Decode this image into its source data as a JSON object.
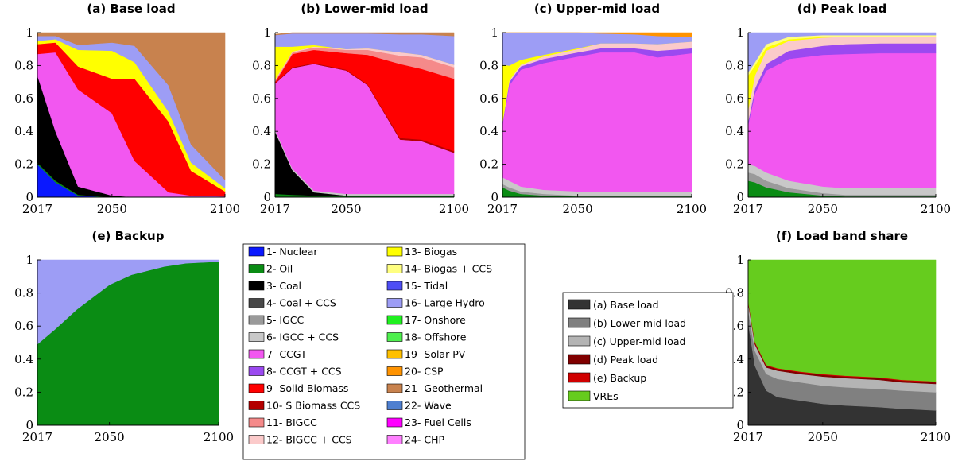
{
  "x_ticks": [
    "2017",
    "2050",
    "2100"
  ],
  "y_ticks": [
    "0",
    "0.2",
    "0.4",
    "0.6",
    "0.8",
    "1"
  ],
  "technologies": [
    {
      "id": 1,
      "label": "1- Nuclear",
      "color": "#0a18ff"
    },
    {
      "id": 2,
      "label": "2- Oil",
      "color": "#0a8c14"
    },
    {
      "id": 3,
      "label": "3- Coal",
      "color": "#000000"
    },
    {
      "id": 4,
      "label": "4- Coal + CCS",
      "color": "#484848"
    },
    {
      "id": 5,
      "label": "5- IGCC",
      "color": "#9a9a9a"
    },
    {
      "id": 6,
      "label": "6- IGCC + CCS",
      "color": "#c8c8c8"
    },
    {
      "id": 7,
      "label": "7- CCGT",
      "color": "#f257f0"
    },
    {
      "id": 8,
      "label": "8- CCGT + CCS",
      "color": "#9b49f0"
    },
    {
      "id": 9,
      "label": "9- Solid Biomass",
      "color": "#ff0000"
    },
    {
      "id": 10,
      "label": "10- S Biomass CCS",
      "color": "#b40000"
    },
    {
      "id": 11,
      "label": "11- BIGCC",
      "color": "#f58a8a"
    },
    {
      "id": 12,
      "label": "12- BIGCC + CCS",
      "color": "#fbcaca"
    },
    {
      "id": 13,
      "label": "13- Biogas",
      "color": "#ffff00"
    },
    {
      "id": 14,
      "label": "14- Biogas + CCS",
      "color": "#ffff80"
    },
    {
      "id": 15,
      "label": "15- Tidal",
      "color": "#4e4ef5"
    },
    {
      "id": 16,
      "label": "16- Large Hydro",
      "color": "#9d9df5"
    },
    {
      "id": 17,
      "label": "17- Onshore",
      "color": "#20f020"
    },
    {
      "id": 18,
      "label": "18- Offshore",
      "color": "#4ef04e"
    },
    {
      "id": 19,
      "label": "19- Solar PV",
      "color": "#ffc000"
    },
    {
      "id": 20,
      "label": "20- CSP",
      "color": "#ff9300"
    },
    {
      "id": 21,
      "label": "21- Geothermal",
      "color": "#c8824e"
    },
    {
      "id": 22,
      "label": "22- Wave",
      "color": "#4e7fd0"
    },
    {
      "id": 23,
      "label": "23- Fuel Cells",
      "color": "#ff00ff"
    },
    {
      "id": 24,
      "label": "24- CHP",
      "color": "#ff80ff"
    }
  ],
  "load_band_legend": [
    {
      "label": "(a) Base load",
      "color": "#333333"
    },
    {
      "label": "(b) Lower-mid load",
      "color": "#808080"
    },
    {
      "label": "(c) Upper-mid load",
      "color": "#b4b4b4"
    },
    {
      "label": "(d) Peak load",
      "color": "#800000"
    },
    {
      "label": "(e) Backup",
      "color": "#d00000"
    },
    {
      "label": "VREs",
      "color": "#66cc1e"
    }
  ],
  "chart_data": [
    {
      "type": "area",
      "title": "(a) Base load",
      "x": [
        2017,
        2025,
        2035,
        2050,
        2060,
        2075,
        2085,
        2100
      ],
      "ylim": [
        0,
        1
      ],
      "series": [
        {
          "tech": 1,
          "values": [
            0.2,
            0.09,
            0.01,
            0,
            0,
            0,
            0,
            0
          ]
        },
        {
          "tech": 2,
          "values": [
            0.01,
            0.01,
            0.005,
            0,
            0,
            0,
            0,
            0
          ]
        },
        {
          "tech": 3,
          "values": [
            0.53,
            0.3,
            0.05,
            0.01,
            0,
            0,
            0,
            0
          ]
        },
        {
          "tech": 7,
          "values": [
            0.13,
            0.48,
            0.59,
            0.5,
            0.22,
            0.03,
            0.01,
            0.005
          ]
        },
        {
          "tech": 9,
          "values": [
            0.06,
            0.06,
            0.14,
            0.21,
            0.5,
            0.43,
            0.15,
            0.03
          ]
        },
        {
          "tech": 13,
          "values": [
            0.02,
            0.02,
            0.1,
            0.17,
            0.1,
            0.06,
            0.05,
            0.02
          ]
        },
        {
          "tech": 16,
          "values": [
            0.03,
            0.02,
            0.03,
            0.05,
            0.1,
            0.16,
            0.11,
            0.05
          ]
        },
        {
          "tech": 21,
          "values": [
            0.02,
            0.02,
            0.075,
            0.06,
            0.08,
            0.32,
            0.68,
            0.895
          ]
        }
      ]
    },
    {
      "type": "area",
      "title": "(b) Lower-mid load",
      "x": [
        2017,
        2025,
        2035,
        2050,
        2060,
        2075,
        2085,
        2100
      ],
      "ylim": [
        0,
        1
      ],
      "series": [
        {
          "tech": 2,
          "values": [
            0.02,
            0.015,
            0.01,
            0.01,
            0.01,
            0.01,
            0.01,
            0.01
          ]
        },
        {
          "tech": 3,
          "values": [
            0.38,
            0.15,
            0.02,
            0,
            0,
            0,
            0,
            0
          ]
        },
        {
          "tech": 6,
          "values": [
            0.01,
            0.01,
            0.01,
            0.01,
            0.01,
            0.01,
            0.01,
            0.01
          ]
        },
        {
          "tech": 7,
          "values": [
            0.28,
            0.61,
            0.77,
            0.75,
            0.66,
            0.33,
            0.32,
            0.25
          ]
        },
        {
          "tech": 10,
          "values": [
            0.005,
            0.005,
            0.005,
            0.005,
            0.005,
            0.01,
            0.01,
            0.01
          ]
        },
        {
          "tech": 9,
          "values": [
            0.005,
            0.08,
            0.08,
            0.1,
            0.18,
            0.45,
            0.43,
            0.44
          ]
        },
        {
          "tech": 11,
          "values": [
            0.01,
            0.01,
            0.015,
            0.02,
            0.03,
            0.05,
            0.07,
            0.07
          ]
        },
        {
          "tech": 12,
          "values": [
            0.005,
            0.005,
            0.005,
            0.005,
            0.01,
            0.02,
            0.015,
            0.015
          ]
        },
        {
          "tech": 13,
          "values": [
            0.2,
            0.03,
            0.01,
            0,
            0,
            0,
            0,
            0
          ]
        },
        {
          "tech": 16,
          "values": [
            0.07,
            0.08,
            0.07,
            0.095,
            0.09,
            0.11,
            0.125,
            0.175
          ]
        },
        {
          "tech": 21,
          "values": [
            0.005,
            0.005,
            0.005,
            0.005,
            0.005,
            0.01,
            0.01,
            0.02
          ]
        }
      ]
    },
    {
      "type": "area",
      "title": "(c) Upper-mid load",
      "x": [
        2017,
        2020,
        2025,
        2035,
        2050,
        2060,
        2075,
        2085,
        2100
      ],
      "ylim": [
        0,
        1
      ],
      "series": [
        {
          "tech": 2,
          "values": [
            0.06,
            0.04,
            0.02,
            0.01,
            0.005,
            0.005,
            0.005,
            0.005,
            0.005
          ]
        },
        {
          "tech": 5,
          "values": [
            0.02,
            0.02,
            0.015,
            0.01,
            0.005,
            0.005,
            0.005,
            0.005,
            0.005
          ]
        },
        {
          "tech": 6,
          "values": [
            0.04,
            0.04,
            0.03,
            0.025,
            0.025,
            0.025,
            0.025,
            0.025,
            0.025
          ]
        },
        {
          "tech": 7,
          "values": [
            0.32,
            0.58,
            0.71,
            0.77,
            0.82,
            0.845,
            0.845,
            0.815,
            0.84
          ]
        },
        {
          "tech": 8,
          "values": [
            0.01,
            0.02,
            0.02,
            0.025,
            0.025,
            0.025,
            0.025,
            0.04,
            0.03
          ]
        },
        {
          "tech": 12,
          "values": [
            0.005,
            0.01,
            0.01,
            0.015,
            0.02,
            0.03,
            0.03,
            0.04,
            0.04
          ]
        },
        {
          "tech": 13,
          "values": [
            0.35,
            0.09,
            0.03,
            0.01,
            0.005,
            0,
            0,
            0,
            0
          ]
        },
        {
          "tech": 16,
          "values": [
            0.195,
            0.2,
            0.165,
            0.135,
            0.095,
            0.06,
            0.055,
            0.05,
            0.03
          ]
        },
        {
          "tech": 20,
          "values": [
            0,
            0,
            0,
            0,
            0,
            0.005,
            0.01,
            0.02,
            0.025
          ]
        }
      ]
    },
    {
      "type": "area",
      "title": "(d) Peak load",
      "x": [
        2017,
        2020,
        2025,
        2035,
        2050,
        2060,
        2075,
        2085,
        2100
      ],
      "ylim": [
        0,
        1
      ],
      "series": [
        {
          "tech": 2,
          "values": [
            0.1,
            0.09,
            0.06,
            0.03,
            0.01,
            0.005,
            0.005,
            0.005,
            0.005
          ]
        },
        {
          "tech": 5,
          "values": [
            0.05,
            0.05,
            0.04,
            0.025,
            0.015,
            0.01,
            0.01,
            0.01,
            0.01
          ]
        },
        {
          "tech": 6,
          "values": [
            0.05,
            0.05,
            0.05,
            0.045,
            0.04,
            0.04,
            0.04,
            0.04,
            0.04
          ]
        },
        {
          "tech": 7,
          "values": [
            0.24,
            0.44,
            0.62,
            0.74,
            0.8,
            0.815,
            0.82,
            0.82,
            0.82
          ]
        },
        {
          "tech": 8,
          "values": [
            0.02,
            0.03,
            0.04,
            0.05,
            0.055,
            0.06,
            0.06,
            0.06,
            0.06
          ]
        },
        {
          "tech": 12,
          "values": [
            0.07,
            0.08,
            0.08,
            0.06,
            0.05,
            0.045,
            0.04,
            0.04,
            0.04
          ]
        },
        {
          "tech": 13,
          "values": [
            0.21,
            0.06,
            0.02,
            0.01,
            0.005,
            0,
            0,
            0,
            0
          ]
        },
        {
          "tech": 14,
          "values": [
            0.02,
            0.02,
            0.02,
            0.015,
            0.01,
            0.01,
            0.01,
            0.01,
            0.01
          ]
        },
        {
          "tech": 16,
          "values": [
            0.24,
            0.18,
            0.07,
            0.025,
            0.015,
            0.015,
            0.015,
            0.015,
            0.015
          ]
        }
      ]
    },
    {
      "type": "area",
      "title": "(e) Backup",
      "x": [
        2017,
        2025,
        2035,
        2050,
        2060,
        2075,
        2085,
        2100
      ],
      "ylim": [
        0,
        1
      ],
      "series": [
        {
          "tech": 2,
          "values": [
            0.49,
            0.58,
            0.7,
            0.85,
            0.91,
            0.96,
            0.98,
            0.99
          ]
        },
        {
          "tech": 16,
          "values": [
            0.51,
            0.42,
            0.3,
            0.15,
            0.09,
            0.04,
            0.02,
            0.01
          ]
        }
      ]
    },
    {
      "type": "area",
      "title": "(f) Load band share",
      "x": [
        2017,
        2020,
        2025,
        2030,
        2040,
        2050,
        2060,
        2075,
        2085,
        2100
      ],
      "ylim": [
        0,
        1
      ],
      "series": [
        {
          "name": "(a) Base load",
          "values": [
            0.62,
            0.36,
            0.21,
            0.17,
            0.15,
            0.13,
            0.12,
            0.11,
            0.1,
            0.09
          ]
        },
        {
          "name": "(b) Lower-mid load",
          "values": [
            0.08,
            0.09,
            0.1,
            0.11,
            0.11,
            0.11,
            0.11,
            0.11,
            0.11,
            0.11
          ]
        },
        {
          "name": "(c) Upper-mid load",
          "values": [
            0.04,
            0.04,
            0.04,
            0.05,
            0.05,
            0.055,
            0.055,
            0.055,
            0.05,
            0.05
          ]
        },
        {
          "name": "(d) Peak load",
          "values": [
            0.01,
            0.01,
            0.01,
            0.01,
            0.01,
            0.01,
            0.01,
            0.01,
            0.01,
            0.01
          ]
        },
        {
          "name": "(e) Backup",
          "values": [
            0.005,
            0.005,
            0.005,
            0.005,
            0.005,
            0.005,
            0.005,
            0.005,
            0.005,
            0.005
          ]
        },
        {
          "name": "VREs",
          "values": [
            0.245,
            0.495,
            0.635,
            0.655,
            0.675,
            0.69,
            0.7,
            0.71,
            0.725,
            0.735
          ]
        }
      ]
    }
  ]
}
